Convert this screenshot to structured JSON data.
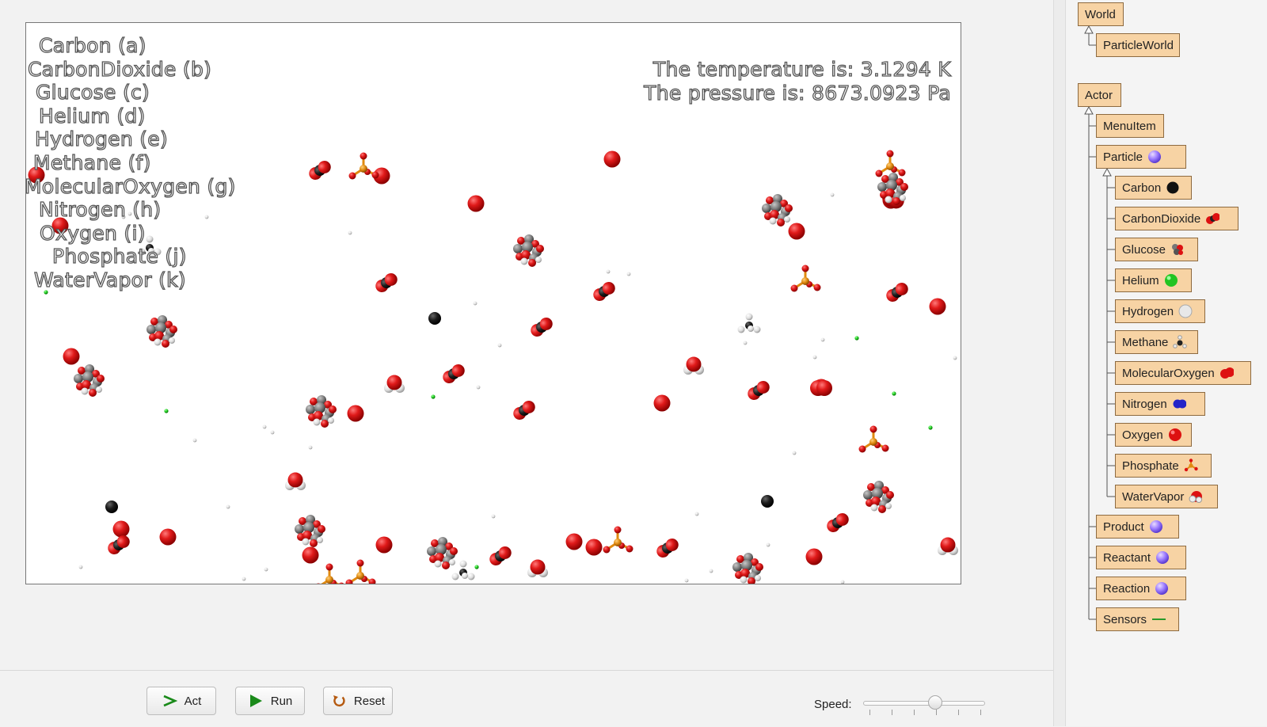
{
  "legend": [
    "Carbon (a)",
    "CarbonDioxide (b)",
    "Glucose (c)",
    "Helium (d)",
    "Hydrogen (e)",
    "Methane (f)",
    "MolecularOxygen (g)",
    "Nitrogen (h)",
    "Oxygen (i)",
    "Phosphate (j)",
    "WaterVapor (k)"
  ],
  "readout": {
    "temperature": "The temperature is: 3.1294 K",
    "pressure": "The pressure is: 8673.0923 Pa"
  },
  "controls": {
    "act_label": "Act",
    "run_label": "Run",
    "reset_label": "Reset",
    "speed_label": "Speed:",
    "speed_fraction": 0.6
  },
  "class_tree": {
    "world": {
      "label": "World",
      "children": [
        {
          "label": "ParticleWorld"
        }
      ]
    },
    "actor": {
      "label": "Actor",
      "children": [
        {
          "label": "MenuItem"
        },
        {
          "label": "Particle",
          "icon": "purple-sphere-icon",
          "children": [
            {
              "label": "Carbon",
              "icon": "black-sphere-icon"
            },
            {
              "label": "CarbonDioxide",
              "icon": "co2-molecule-icon"
            },
            {
              "label": "Glucose",
              "icon": "glucose-molecule-icon"
            },
            {
              "label": "Helium",
              "icon": "green-sphere-icon"
            },
            {
              "label": "Hydrogen",
              "icon": "white-sphere-icon"
            },
            {
              "label": "Methane",
              "icon": "methane-molecule-icon"
            },
            {
              "label": "MolecularOxygen",
              "icon": "o2-molecule-icon"
            },
            {
              "label": "Nitrogen",
              "icon": "n2-molecule-icon"
            },
            {
              "label": "Oxygen",
              "icon": "red-sphere-icon"
            },
            {
              "label": "Phosphate",
              "icon": "phosphate-molecule-icon"
            },
            {
              "label": "WaterVapor",
              "icon": "water-molecule-icon"
            }
          ]
        },
        {
          "label": "Product",
          "icon": "purple-sphere-icon"
        },
        {
          "label": "Reactant",
          "icon": "purple-sphere-icon"
        },
        {
          "label": "Reaction",
          "icon": "purple-sphere-icon"
        },
        {
          "label": "Sensors",
          "icon": "green-line-icon"
        }
      ]
    }
  },
  "colors": {
    "oxygen": "#dd1111",
    "carbon": "#151515",
    "helium": "#22cc22",
    "phosphorus": "#e08a10",
    "class_box": "#f7d3a4"
  }
}
